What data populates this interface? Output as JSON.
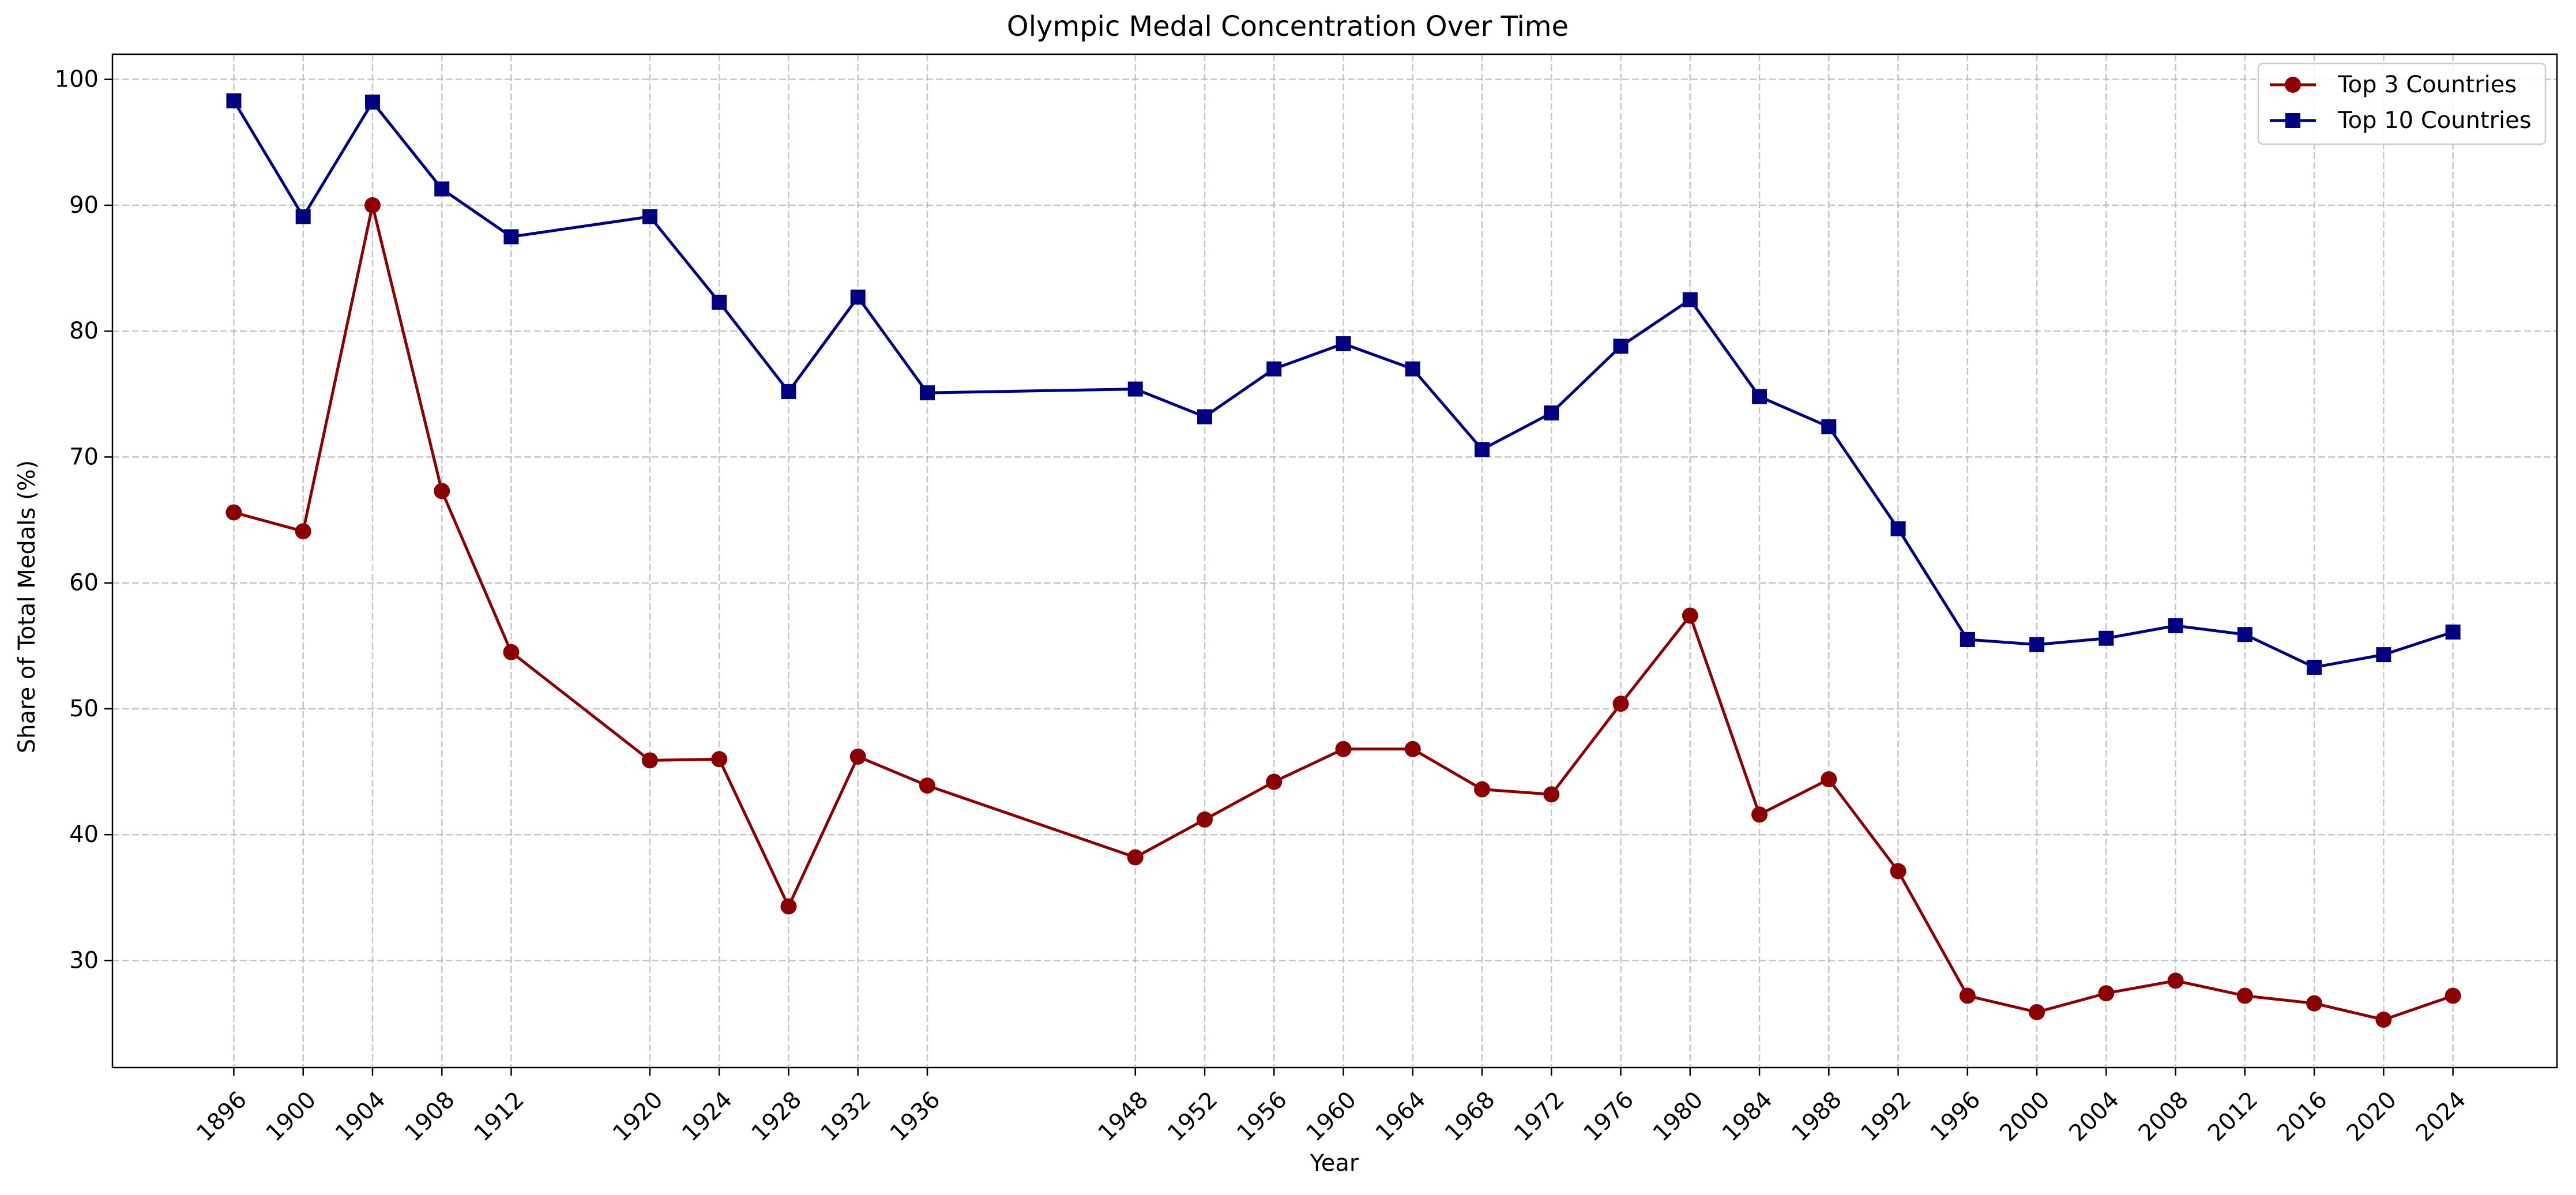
{
  "chart_data": {
    "type": "line",
    "title": "Olympic Medal Concentration Over Time",
    "xlabel": "Year",
    "ylabel": "Share of Total Medals (%)",
    "x": [
      1896,
      1900,
      1904,
      1908,
      1912,
      1920,
      1924,
      1928,
      1932,
      1936,
      1948,
      1952,
      1956,
      1960,
      1964,
      1968,
      1972,
      1976,
      1980,
      1984,
      1988,
      1992,
      1996,
      2000,
      2004,
      2008,
      2012,
      2016,
      2020,
      2024
    ],
    "x_tick_labels": [
      "1896",
      "1900",
      "1904",
      "1908",
      "1912",
      "1920",
      "1924",
      "1928",
      "1932",
      "1936",
      "1948",
      "1952",
      "1956",
      "1960",
      "1964",
      "1968",
      "1972",
      "1976",
      "1980",
      "1984",
      "1988",
      "1992",
      "1996",
      "2000",
      "2004",
      "2008",
      "2012",
      "2016",
      "2020",
      "2024"
    ],
    "xlim": [
      1889,
      2030
    ],
    "ylim": [
      21.5,
      102
    ],
    "y_ticks": [
      30,
      40,
      50,
      60,
      70,
      80,
      90,
      100
    ],
    "grid": true,
    "legend_position": "top-right",
    "series": [
      {
        "name": "Top 3 Countries",
        "color": "#8b0000",
        "marker": "circle",
        "values": [
          65.6,
          64.1,
          90.0,
          67.3,
          54.5,
          45.9,
          46.0,
          34.3,
          46.2,
          43.9,
          38.2,
          41.2,
          44.2,
          46.8,
          46.8,
          43.6,
          43.2,
          50.4,
          57.4,
          41.6,
          44.4,
          37.1,
          27.2,
          25.9,
          27.4,
          28.4,
          27.2,
          26.6,
          25.3,
          27.2
        ]
      },
      {
        "name": "Top 10 Countries",
        "color": "#000080",
        "marker": "square",
        "values": [
          98.3,
          89.1,
          98.2,
          91.3,
          87.5,
          89.1,
          82.3,
          75.2,
          82.7,
          75.1,
          75.4,
          73.2,
          77.0,
          79.0,
          77.0,
          70.6,
          73.5,
          78.8,
          82.5,
          74.8,
          72.4,
          64.3,
          55.5,
          55.1,
          55.6,
          56.6,
          55.9,
          53.3,
          54.3,
          56.1
        ]
      }
    ]
  }
}
